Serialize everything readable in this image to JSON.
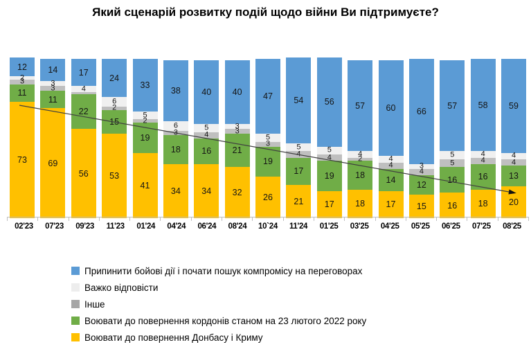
{
  "title": "Який сценарій розвитку подій щодо війни Ви підтримуєте?",
  "colors": {
    "blue": "#5b9bd5",
    "lightgray_band": "#f0f0f0",
    "gray_band": "#bfbfbf",
    "green": "#70ad47",
    "yellow": "#ffc000",
    "legend_lightgray": "#ededed",
    "legend_gray": "#a6a6a6",
    "axis": "#bfbfbf",
    "trend_line": "#404040",
    "label_text": "#151515"
  },
  "chart_data": {
    "type": "bar",
    "stacked": true,
    "percent_scale": true,
    "ylim": [
      0,
      100
    ],
    "grid": false,
    "legend_position": "bottom-left",
    "title": "Який сценарій розвитку подій щодо війни Ви підтримуєте?",
    "xlabel": "",
    "ylabel": "",
    "categories": [
      "02'23",
      "07'23",
      "09'23",
      "11'23",
      "01'24",
      "04'24",
      "06'24",
      "08'24",
      "10`24",
      "11'24",
      "01'25",
      "03'25",
      "04'25",
      "05'25",
      "06'25",
      "07'25",
      "08'25"
    ],
    "series": [
      {
        "name": "Воювати до повернення Донбасу і Криму",
        "color_key": "yellow",
        "values": [
          73,
          69,
          56,
          53,
          41,
          34,
          34,
          32,
          26,
          21,
          17,
          18,
          17,
          15,
          16,
          18,
          20
        ]
      },
      {
        "name": "Воювати до повернення кордонів станом на 23 лютого 2022 року",
        "color_key": "green",
        "values": [
          11,
          11,
          22,
          15,
          19,
          18,
          16,
          21,
          19,
          17,
          19,
          18,
          14,
          12,
          16,
          16,
          13
        ]
      },
      {
        "name": "Інше",
        "color_key": "gray_band",
        "values": [
          3,
          3,
          1,
          2,
          2,
          3,
          4,
          3,
          3,
          4,
          4,
          2,
          4,
          4,
          5,
          4,
          4
        ],
        "hidden_label_indices": [
          2
        ]
      },
      {
        "name": "Важко відповісти",
        "color_key": "lightgray_band",
        "values": [
          2,
          3,
          4,
          6,
          5,
          6,
          5,
          3,
          5,
          5,
          5,
          4,
          4,
          3,
          5,
          4,
          4
        ]
      },
      {
        "name": "Припинити бойові дії і почати пошук компромісу на переговорах",
        "color_key": "blue",
        "values": [
          12,
          14,
          17,
          24,
          33,
          38,
          40,
          40,
          47,
          54,
          56,
          57,
          60,
          66,
          57,
          58,
          59
        ]
      }
    ],
    "trend_arrow": {
      "description": "declining trend of yellow series, arrow from first bar to last bar",
      "from": [
        28,
        152
      ],
      "to": [
        735,
        277
      ]
    }
  },
  "legend": {
    "items": [
      {
        "label": "Припинити бойові дії і почати пошук компромісу на переговорах",
        "color_key": "blue"
      },
      {
        "label": "Важко відповісти",
        "color_key": "legend_lightgray"
      },
      {
        "label": "Інше",
        "color_key": "legend_gray"
      },
      {
        "label": "Воювати до повернення кордонів станом на 23 лютого 2022 року",
        "color_key": "green"
      },
      {
        "label": "Воювати до повернення Донбасу і Криму",
        "color_key": "yellow"
      }
    ]
  }
}
